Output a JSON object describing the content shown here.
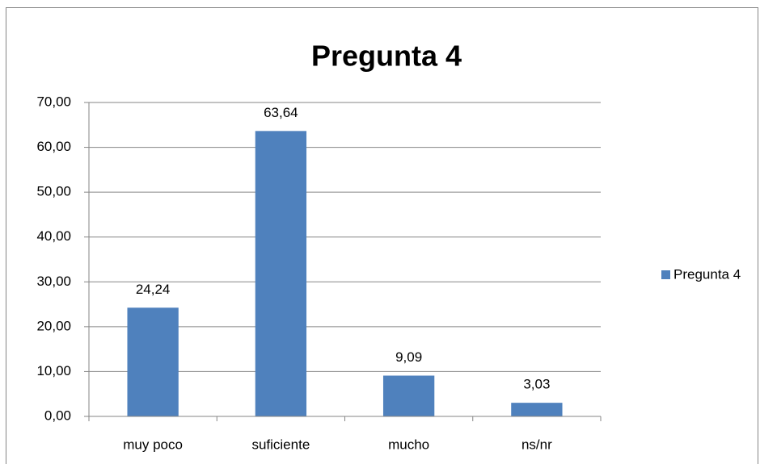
{
  "chart_data": {
    "type": "bar",
    "title": "Pregunta 4",
    "categories": [
      "muy poco",
      "suficiente",
      "mucho",
      "ns/nr"
    ],
    "series": [
      {
        "name": "Pregunta 4",
        "color": "#4f81bd",
        "values": [
          24.24,
          63.64,
          9.09,
          3.03
        ],
        "value_labels": [
          "24,24",
          "63,64",
          "9,09",
          "3,03"
        ]
      }
    ],
    "ylim": [
      0,
      70
    ],
    "yticks": [
      {
        "value": 0,
        "label": "0,00"
      },
      {
        "value": 10,
        "label": "10,00"
      },
      {
        "value": 20,
        "label": "20,00"
      },
      {
        "value": 30,
        "label": "30,00"
      },
      {
        "value": 40,
        "label": "40,00"
      },
      {
        "value": 50,
        "label": "50,00"
      },
      {
        "value": 60,
        "label": "60,00"
      },
      {
        "value": 70,
        "label": "70,00"
      }
    ],
    "grid": true,
    "legend": "right"
  }
}
